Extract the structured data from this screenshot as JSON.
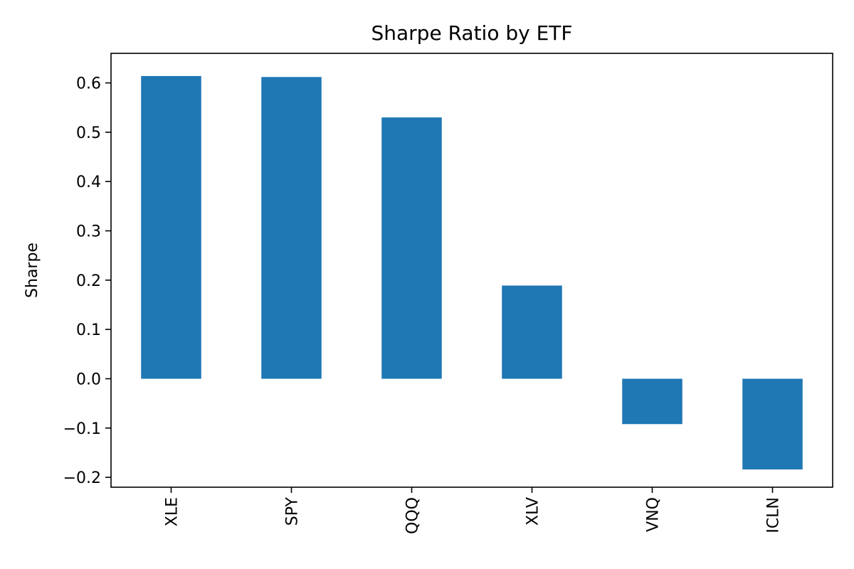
{
  "chart_data": {
    "type": "bar",
    "title": "Sharpe Ratio by ETF",
    "xlabel": "",
    "ylabel": "Sharpe",
    "categories": [
      "XLE",
      "SPY",
      "QQQ",
      "XLV",
      "VNQ",
      "ICLN"
    ],
    "values": [
      0.614,
      0.612,
      0.53,
      0.189,
      -0.092,
      -0.184
    ],
    "ylim": [
      -0.22,
      0.66
    ],
    "yticks": [
      -0.2,
      -0.1,
      0.0,
      0.1,
      0.2,
      0.3,
      0.4,
      0.5,
      0.6
    ],
    "ytick_labels": [
      "−0.2",
      "−0.1",
      "0.0",
      "0.1",
      "0.2",
      "0.3",
      "0.4",
      "0.5",
      "0.6"
    ],
    "bar_color": "#1f77b4",
    "grid": false,
    "legend": "none",
    "xtick_rotation": "vertical"
  }
}
